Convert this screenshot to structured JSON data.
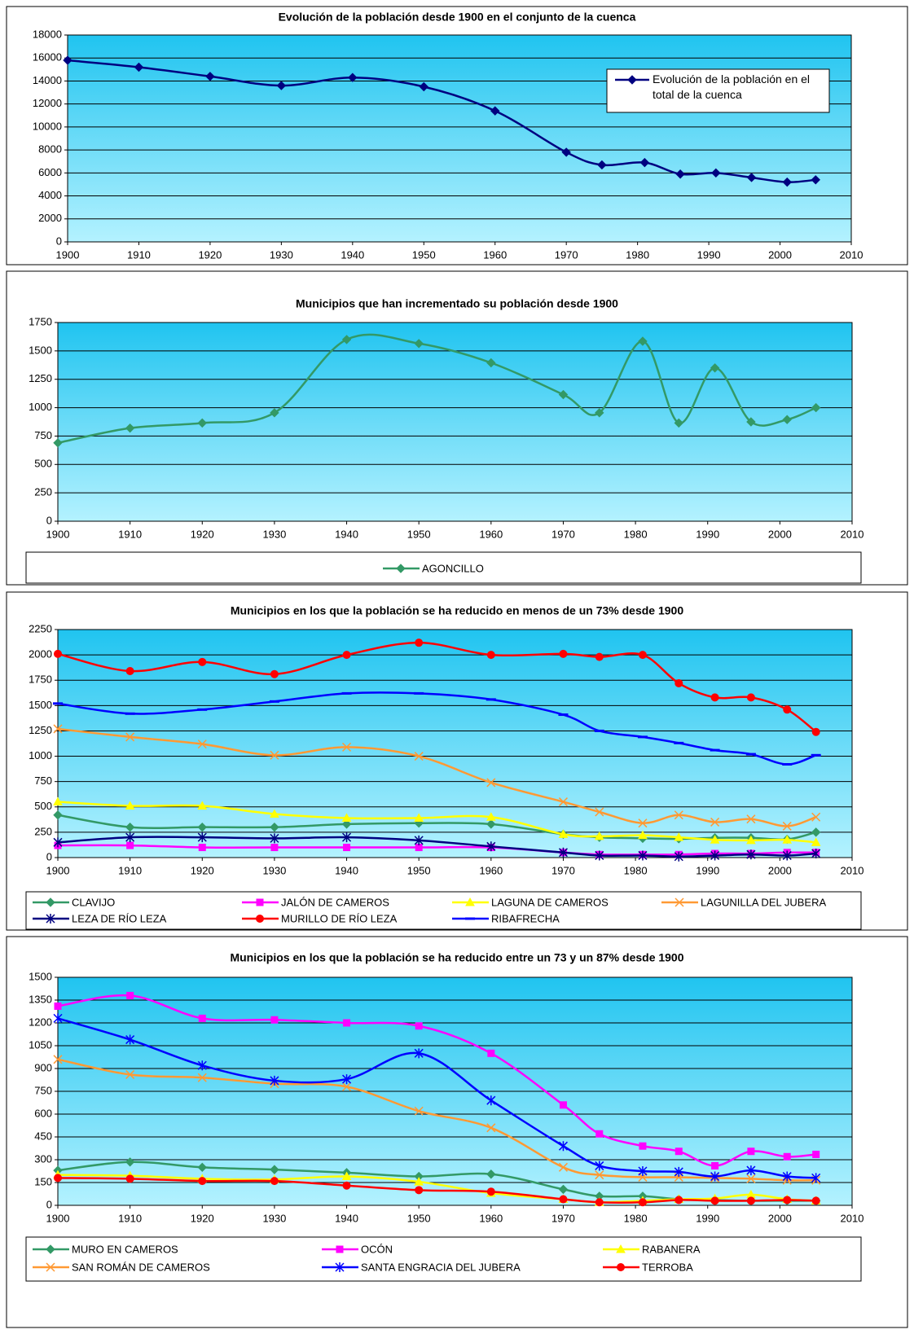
{
  "chart_data": [
    {
      "type": "line",
      "title": "Evolución de la población desde 1900 en el conjunto de la cuenca",
      "x": [
        1900,
        1910,
        1920,
        1930,
        1940,
        1950,
        1960,
        1970,
        1975,
        1981,
        1986,
        1991,
        1996,
        2001,
        2005
      ],
      "xlim": [
        1900,
        2010
      ],
      "xticks": [
        1900,
        1910,
        1920,
        1930,
        1940,
        1950,
        1960,
        1970,
        1980,
        1990,
        2000,
        2010
      ],
      "ylim": [
        0,
        18000
      ],
      "yticks": [
        0,
        2000,
        4000,
        6000,
        8000,
        10000,
        12000,
        14000,
        16000,
        18000
      ],
      "grid": true,
      "legend": "right",
      "series": [
        {
          "name": "Evolución de la población en el total de la cuenca",
          "color": "#000080",
          "marker": "diamond",
          "values": [
            15800,
            15200,
            14400,
            13600,
            14300,
            13500,
            11400,
            7800,
            6700,
            6900,
            5900,
            6000,
            5600,
            5200,
            5400
          ]
        }
      ]
    },
    {
      "type": "line",
      "title": "Municipios que han incrementado su población desde 1900",
      "x": [
        1900,
        1910,
        1920,
        1930,
        1940,
        1950,
        1960,
        1970,
        1975,
        1981,
        1986,
        1991,
        1996,
        2001,
        2005
      ],
      "xlim": [
        1900,
        2010
      ],
      "xticks": [
        1900,
        1910,
        1920,
        1930,
        1940,
        1950,
        1960,
        1970,
        1980,
        1990,
        2000,
        2010
      ],
      "ylim": [
        0,
        1750
      ],
      "yticks": [
        0,
        250,
        500,
        750,
        1000,
        1250,
        1500,
        1750
      ],
      "grid": true,
      "legend": "bottom",
      "series": [
        {
          "name": "AGONCILLO",
          "color": "#339966",
          "marker": "diamond",
          "values": [
            690,
            820,
            865,
            955,
            1600,
            1565,
            1395,
            1115,
            955,
            1585,
            865,
            1350,
            875,
            895,
            1000
          ]
        }
      ]
    },
    {
      "type": "line",
      "title": "Municipios en los que la población se ha reducido en menos de un 73% desde 1900",
      "x": [
        1900,
        1910,
        1920,
        1930,
        1940,
        1950,
        1960,
        1970,
        1975,
        1981,
        1986,
        1991,
        1996,
        2001,
        2005
      ],
      "xlim": [
        1900,
        2010
      ],
      "xticks": [
        1900,
        1910,
        1920,
        1930,
        1940,
        1950,
        1960,
        1970,
        1980,
        1990,
        2000,
        2010
      ],
      "ylim": [
        0,
        2250
      ],
      "yticks": [
        0,
        250,
        500,
        750,
        1000,
        1250,
        1500,
        1750,
        2000,
        2250
      ],
      "grid": true,
      "legend": "bottom",
      "series": [
        {
          "name": "CLAVIJO",
          "color": "#339966",
          "marker": "diamond",
          "values": [
            420,
            300,
            300,
            300,
            330,
            340,
            330,
            230,
            200,
            190,
            185,
            195,
            195,
            180,
            250
          ]
        },
        {
          "name": "JALÓN DE CAMEROS",
          "color": "#ff00ff",
          "marker": "square",
          "values": [
            120,
            120,
            100,
            100,
            100,
            100,
            100,
            50,
            30,
            30,
            30,
            40,
            40,
            50,
            50
          ]
        },
        {
          "name": "LAGUNA DE CAMEROS",
          "color": "#ffff00",
          "marker": "triangle",
          "values": [
            550,
            510,
            510,
            430,
            390,
            390,
            400,
            230,
            210,
            220,
            200,
            175,
            170,
            175,
            150
          ]
        },
        {
          "name": "LAGUNILLA DEL JUBERA",
          "color": "#ff9933",
          "marker": "x",
          "values": [
            1270,
            1190,
            1120,
            1010,
            1090,
            1000,
            740,
            550,
            450,
            340,
            420,
            350,
            380,
            310,
            400
          ]
        },
        {
          "name": "LEZA DE RÍO LEZA",
          "color": "#000080",
          "marker": "star",
          "values": [
            150,
            200,
            200,
            190,
            200,
            170,
            110,
            50,
            20,
            20,
            10,
            20,
            30,
            20,
            40
          ]
        },
        {
          "name": "MURILLO DE RÍO LEZA",
          "color": "#ff0000",
          "marker": "circle",
          "values": [
            2010,
            1840,
            1930,
            1810,
            2000,
            2120,
            2000,
            2010,
            1980,
            2000,
            1720,
            1580,
            1580,
            1460,
            1240
          ]
        },
        {
          "name": "RIBAFRECHA",
          "color": "#0000ff",
          "marker": "dash",
          "values": [
            1520,
            1420,
            1460,
            1540,
            1620,
            1620,
            1560,
            1410,
            1250,
            1190,
            1130,
            1060,
            1020,
            920,
            1010
          ]
        }
      ]
    },
    {
      "type": "line",
      "title": "Municipios en los que la población se ha reducido entre un 73 y un 87% desde 1900",
      "x": [
        1900,
        1910,
        1920,
        1930,
        1940,
        1950,
        1960,
        1970,
        1975,
        1981,
        1986,
        1991,
        1996,
        2001,
        2005
      ],
      "xlim": [
        1900,
        2010
      ],
      "xticks": [
        1900,
        1910,
        1920,
        1930,
        1940,
        1950,
        1960,
        1970,
        1980,
        1990,
        2000,
        2010
      ],
      "ylim": [
        0,
        1500
      ],
      "yticks": [
        0,
        150,
        300,
        450,
        600,
        750,
        900,
        1050,
        1200,
        1350,
        1500
      ],
      "grid": true,
      "legend": "bottom",
      "series": [
        {
          "name": "MURO EN CAMEROS",
          "color": "#339966",
          "marker": "diamond",
          "values": [
            230,
            285,
            250,
            235,
            215,
            190,
            205,
            105,
            60,
            60,
            40,
            35,
            30,
            30,
            30
          ]
        },
        {
          "name": "OCÓN",
          "color": "#ff00ff",
          "marker": "square",
          "values": [
            1310,
            1380,
            1230,
            1220,
            1200,
            1180,
            1000,
            660,
            470,
            390,
            355,
            260,
            355,
            320,
            335
          ]
        },
        {
          "name": "RABANERA",
          "color": "#ffff00",
          "marker": "triangle",
          "values": [
            200,
            195,
            175,
            170,
            190,
            155,
            80,
            40,
            20,
            30,
            40,
            45,
            70,
            40,
            30
          ]
        },
        {
          "name": "SAN ROMÁN DE CAMEROS",
          "color": "#ff9933",
          "marker": "x",
          "values": [
            960,
            860,
            840,
            800,
            780,
            620,
            510,
            250,
            200,
            185,
            185,
            180,
            175,
            165,
            165
          ]
        },
        {
          "name": "SANTA ENGRACIA DEL JUBERA",
          "color": "#0000ff",
          "marker": "star",
          "values": [
            1230,
            1090,
            920,
            820,
            830,
            1000,
            690,
            390,
            260,
            225,
            220,
            190,
            230,
            190,
            180
          ]
        },
        {
          "name": "TERROBA",
          "color": "#ff0000",
          "marker": "circle",
          "values": [
            180,
            175,
            160,
            160,
            130,
            100,
            90,
            40,
            20,
            20,
            35,
            30,
            30,
            35,
            30
          ]
        }
      ]
    }
  ]
}
